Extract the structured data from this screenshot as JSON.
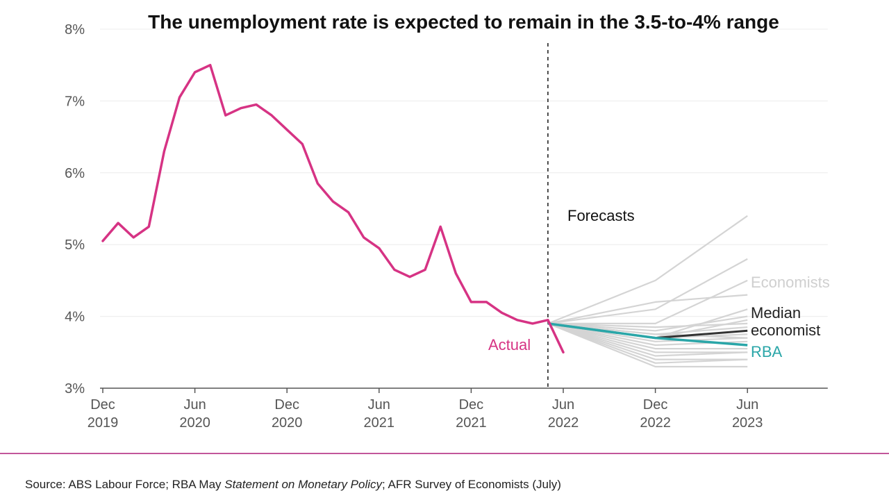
{
  "chart_data": {
    "type": "line",
    "title": "The unemployment rate is expected to remain in the 3.5-to-4% range",
    "xlabel": "",
    "ylabel": "",
    "ylim": [
      3,
      8
    ],
    "y_ticks": [
      {
        "value": 8,
        "label": "8%"
      },
      {
        "value": 7,
        "label": "7%"
      },
      {
        "value": 6,
        "label": "6%"
      },
      {
        "value": 5,
        "label": "5%"
      },
      {
        "value": 4,
        "label": "4%"
      },
      {
        "value": 3,
        "label": "3%"
      }
    ],
    "x_ticks": [
      {
        "t": 0,
        "line1": "Dec",
        "line2": "2019"
      },
      {
        "t": 6,
        "line1": "Jun",
        "line2": "2020"
      },
      {
        "t": 12,
        "line1": "Dec",
        "line2": "2020"
      },
      {
        "t": 18,
        "line1": "Jun",
        "line2": "2021"
      },
      {
        "t": 24,
        "line1": "Dec",
        "line2": "2021"
      },
      {
        "t": 30,
        "line1": "Jun",
        "line2": "2022"
      },
      {
        "t": 36,
        "line1": "Dec",
        "line2": "2022"
      },
      {
        "t": 42,
        "line1": "Jun",
        "line2": "2023"
      }
    ],
    "xlim": [
      0,
      48
    ],
    "forecast_start_t": 29,
    "forecast_label": "Forecasts",
    "actual": {
      "name": "Actual",
      "color": "#d63384",
      "x": [
        0,
        1,
        2,
        3,
        4,
        5,
        6,
        7,
        8,
        9,
        10,
        11,
        12,
        13,
        14,
        15,
        16,
        17,
        18,
        19,
        20,
        21,
        22,
        23,
        24,
        25,
        26,
        27,
        28,
        29,
        30
      ],
      "values": [
        5.05,
        5.3,
        5.1,
        5.25,
        6.3,
        7.05,
        7.4,
        7.5,
        6.8,
        6.9,
        6.95,
        6.8,
        6.6,
        6.4,
        5.85,
        5.6,
        5.45,
        5.1,
        4.95,
        4.65,
        4.55,
        4.65,
        5.25,
        4.6,
        4.2,
        4.2,
        4.05,
        3.95,
        3.9,
        3.95,
        3.5
      ]
    },
    "economists": {
      "name": "Economists",
      "color": "#d4d4d4",
      "x": [
        29,
        36,
        42
      ],
      "series": [
        [
          3.9,
          4.5,
          5.4
        ],
        [
          3.9,
          4.1,
          4.8
        ],
        [
          3.9,
          4.2,
          4.3
        ],
        [
          3.9,
          3.9,
          4.5
        ],
        [
          3.9,
          3.7,
          4.1
        ],
        [
          3.9,
          3.8,
          4.0
        ],
        [
          3.9,
          3.7,
          3.95
        ],
        [
          3.9,
          3.85,
          3.9
        ],
        [
          3.9,
          3.75,
          3.85
        ],
        [
          3.9,
          3.7,
          3.75
        ],
        [
          3.9,
          3.65,
          3.7
        ],
        [
          3.9,
          3.75,
          3.7
        ],
        [
          3.9,
          3.6,
          3.65
        ],
        [
          3.9,
          3.55,
          3.55
        ],
        [
          3.9,
          3.5,
          3.5
        ],
        [
          3.9,
          3.45,
          3.5
        ],
        [
          3.9,
          3.4,
          3.4
        ],
        [
          3.9,
          3.35,
          3.4
        ],
        [
          3.9,
          3.3,
          3.3
        ]
      ]
    },
    "median": {
      "name_line1": "Median",
      "name_line2": "economist",
      "color": "#333333",
      "x": [
        29,
        36,
        42
      ],
      "values": [
        3.9,
        3.7,
        3.8
      ]
    },
    "rba": {
      "name": "RBA",
      "color": "#2aa6a8",
      "x": [
        29,
        36,
        42
      ],
      "values": [
        3.9,
        3.7,
        3.6
      ]
    }
  },
  "source": {
    "prefix": "Source: ABS Labour Force; RBA May ",
    "italic": "Statement on Monetary Policy",
    "suffix": "; AFR Survey of Economists (July)"
  }
}
